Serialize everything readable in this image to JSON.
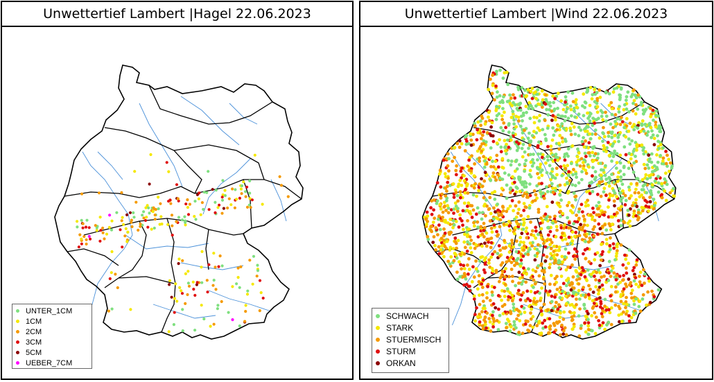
{
  "panels": [
    {
      "title": "Unwettertief Lambert |Hagel 22.06.2023",
      "legend": [
        {
          "label": "UNTER_1CM",
          "color": "#7fe07f"
        },
        {
          "label": "1CM",
          "color": "#f5e800"
        },
        {
          "label": "2CM",
          "color": "#f59a00"
        },
        {
          "label": "3CM",
          "color": "#e01010"
        },
        {
          "label": "5CM",
          "color": "#8b0000"
        },
        {
          "label": "UEBER_7CM",
          "color": "#ff00ff"
        }
      ]
    },
    {
      "title": "Unwettertief Lambert |Wind 22.06.2023",
      "legend": [
        {
          "label": "SCHWACH",
          "color": "#7fe07f"
        },
        {
          "label": "STARK",
          "color": "#f5e800"
        },
        {
          "label": "STUERMISCH",
          "color": "#f59a00"
        },
        {
          "label": "STURM",
          "color": "#e01010"
        },
        {
          "label": "ORKAN",
          "color": "#8b0000"
        }
      ]
    }
  ],
  "map_colors": {
    "border": "#000000",
    "rivers": "#4a90d9",
    "background": "#ffffff"
  }
}
